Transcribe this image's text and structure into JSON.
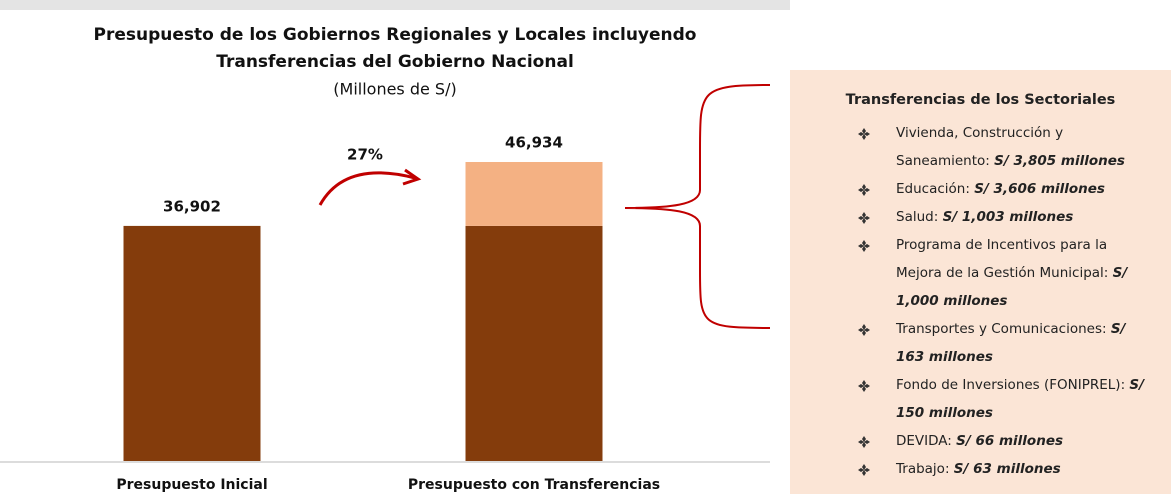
{
  "chart_data": {
    "type": "stacked_bar",
    "title": [
      "Presupuesto de los Gobiernos Regionales y Locales incluyendo",
      "Transferencias del Gobierno Nacional"
    ],
    "subtitle": "(Millones de S/)",
    "categories": [
      "Presupuesto Inicial",
      "Presupuesto con Transferencias"
    ],
    "series": [
      {
        "color": "#843c0c",
        "values": [
          36902,
          36902
        ]
      },
      {
        "color": "#f4b183",
        "values": [
          0,
          10032
        ]
      }
    ],
    "totals": [
      36902,
      46934
    ],
    "value_labels": [
      "36,902",
      "46,934"
    ],
    "annotation": "27%"
  },
  "panel": {
    "title": "Transferencias de los Sectoriales",
    "items": [
      {
        "text": "Vivienda, Construcción y Saneamiento: ",
        "amount": "S/ 3,805 millones"
      },
      {
        "text": "Educación: ",
        "amount": "S/ 3,606 millones"
      },
      {
        "text": "Salud: ",
        "amount": "S/ 1,003 millones"
      },
      {
        "text": "Programa de Incentivos para la Mejora de la Gestión Municipal: ",
        "amount": "S/ 1,000 millones"
      },
      {
        "text": "Transportes y Comunicaciones: ",
        "amount": "S/ 163 millones"
      },
      {
        "text": "Fondo de Inversiones (FONIPREL): ",
        "amount": "S/ 150 millones"
      },
      {
        "text": "DEVIDA: ",
        "amount": "S/ 66 millones"
      },
      {
        "text": "Trabajo: ",
        "amount": "S/ 63 millones"
      }
    ]
  }
}
